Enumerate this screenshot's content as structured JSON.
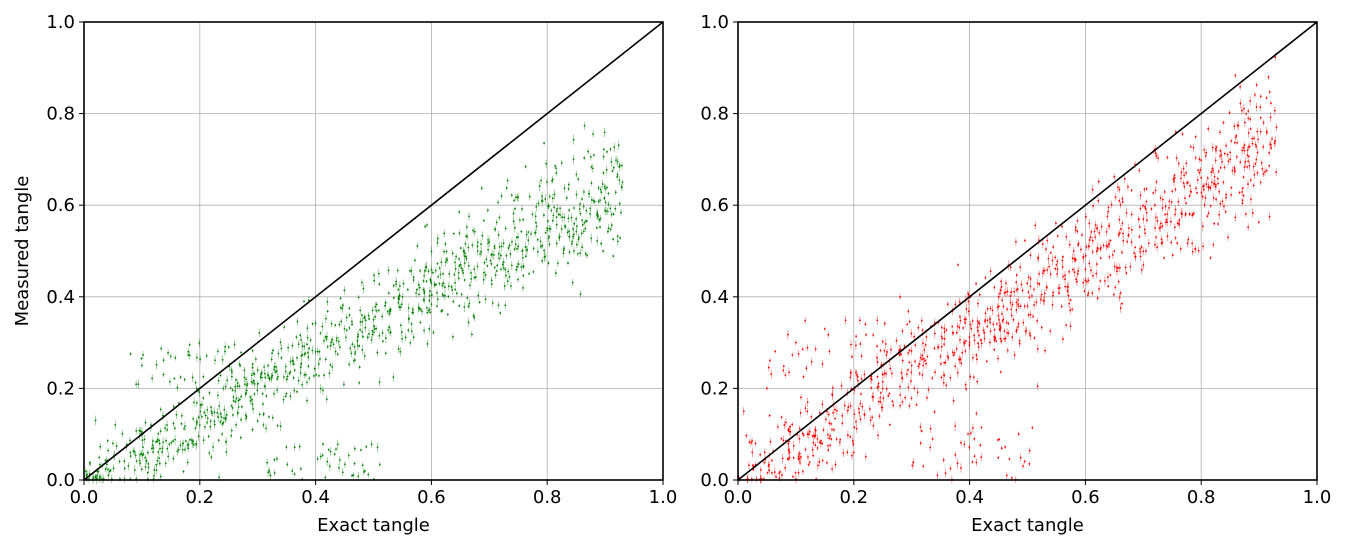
{
  "figure": {
    "background": "#ffffff"
  },
  "chart_data": [
    {
      "type": "scatter",
      "xlabel": "Exact tangle",
      "ylabel": "Measured tangle",
      "xlim": [
        0.0,
        1.0
      ],
      "ylim": [
        0.0,
        1.0
      ],
      "xticks": [
        "0.0",
        "0.2",
        "0.4",
        "0.6",
        "0.8",
        "1.0"
      ],
      "yticks": [
        "0.0",
        "0.2",
        "0.4",
        "0.6",
        "0.8",
        "1.0"
      ],
      "grid": true,
      "point_color": "#008000",
      "reference_line": {
        "x": [
          0.0,
          1.0
        ],
        "y": [
          0.0,
          1.0
        ],
        "color": "#000000"
      },
      "trend": {
        "slope": 0.69,
        "intercept": 0.0,
        "noise": 0.055
      },
      "outlier_clusters": [
        {
          "x": [
            0.3,
            0.52
          ],
          "y": [
            0.0,
            0.08
          ]
        },
        {
          "x": [
            0.08,
            0.3
          ],
          "y": [
            0.18,
            0.3
          ]
        }
      ],
      "points": [
        [
          0.02,
          0.13
        ],
        [
          0.05,
          0.08
        ],
        [
          0.08,
          0.06
        ],
        [
          0.1,
          0.25
        ],
        [
          0.12,
          0.07
        ],
        [
          0.15,
          0.27
        ],
        [
          0.18,
          0.28
        ],
        [
          0.2,
          0.12
        ],
        [
          0.22,
          0.05
        ],
        [
          0.25,
          0.29
        ],
        [
          0.28,
          0.22
        ],
        [
          0.3,
          0.24
        ],
        [
          0.32,
          0.02
        ],
        [
          0.35,
          0.22
        ],
        [
          0.38,
          0.39
        ],
        [
          0.4,
          0.28
        ],
        [
          0.42,
          0.04
        ],
        [
          0.45,
          0.33
        ],
        [
          0.48,
          0.36
        ],
        [
          0.5,
          0.35
        ],
        [
          0.52,
          0.38
        ],
        [
          0.55,
          0.4
        ],
        [
          0.58,
          0.42
        ],
        [
          0.6,
          0.43
        ],
        [
          0.62,
          0.45
        ],
        [
          0.65,
          0.47
        ],
        [
          0.68,
          0.5
        ],
        [
          0.7,
          0.52
        ],
        [
          0.72,
          0.49
        ],
        [
          0.75,
          0.51
        ],
        [
          0.78,
          0.54
        ],
        [
          0.8,
          0.55
        ],
        [
          0.82,
          0.58
        ],
        [
          0.85,
          0.57
        ],
        [
          0.88,
          0.61
        ],
        [
          0.93,
          0.65
        ]
      ]
    },
    {
      "type": "scatter",
      "xlabel": "Exact tangle",
      "ylabel": "",
      "xlim": [
        0.0,
        1.0
      ],
      "ylim": [
        0.0,
        1.0
      ],
      "xticks": [
        "0.0",
        "0.2",
        "0.4",
        "0.6",
        "0.8",
        "1.0"
      ],
      "yticks": [
        "0.0",
        "0.2",
        "0.4",
        "0.6",
        "0.8",
        "1.0"
      ],
      "grid": true,
      "point_color": "#ff0000",
      "reference_line": {
        "x": [
          0.0,
          1.0
        ],
        "y": [
          0.0,
          1.0
        ],
        "color": "#000000"
      },
      "trend": {
        "slope": 0.8,
        "intercept": 0.0,
        "noise": 0.06
      },
      "outlier_clusters": [
        {
          "x": [
            0.3,
            0.52
          ],
          "y": [
            0.0,
            0.12
          ]
        },
        {
          "x": [
            0.05,
            0.3
          ],
          "y": [
            0.22,
            0.35
          ]
        }
      ],
      "points": [
        [
          0.01,
          0.15
        ],
        [
          0.03,
          0.08
        ],
        [
          0.05,
          0.2
        ],
        [
          0.08,
          0.12
        ],
        [
          0.1,
          0.3
        ],
        [
          0.12,
          0.1
        ],
        [
          0.15,
          0.33
        ],
        [
          0.18,
          0.14
        ],
        [
          0.2,
          0.06
        ],
        [
          0.22,
          0.34
        ],
        [
          0.25,
          0.2
        ],
        [
          0.28,
          0.4
        ],
        [
          0.3,
          0.25
        ],
        [
          0.32,
          0.03
        ],
        [
          0.35,
          0.27
        ],
        [
          0.38,
          0.47
        ],
        [
          0.4,
          0.3
        ],
        [
          0.42,
          0.05
        ],
        [
          0.45,
          0.4
        ],
        [
          0.48,
          0.52
        ],
        [
          0.5,
          0.38
        ],
        [
          0.52,
          0.45
        ],
        [
          0.55,
          0.47
        ],
        [
          0.58,
          0.5
        ],
        [
          0.6,
          0.46
        ],
        [
          0.62,
          0.55
        ],
        [
          0.65,
          0.5
        ],
        [
          0.68,
          0.58
        ],
        [
          0.7,
          0.57
        ],
        [
          0.72,
          0.6
        ],
        [
          0.75,
          0.63
        ],
        [
          0.78,
          0.62
        ],
        [
          0.8,
          0.66
        ],
        [
          0.82,
          0.68
        ],
        [
          0.85,
          0.7
        ],
        [
          0.88,
          0.72
        ],
        [
          0.93,
          0.77
        ]
      ]
    }
  ]
}
